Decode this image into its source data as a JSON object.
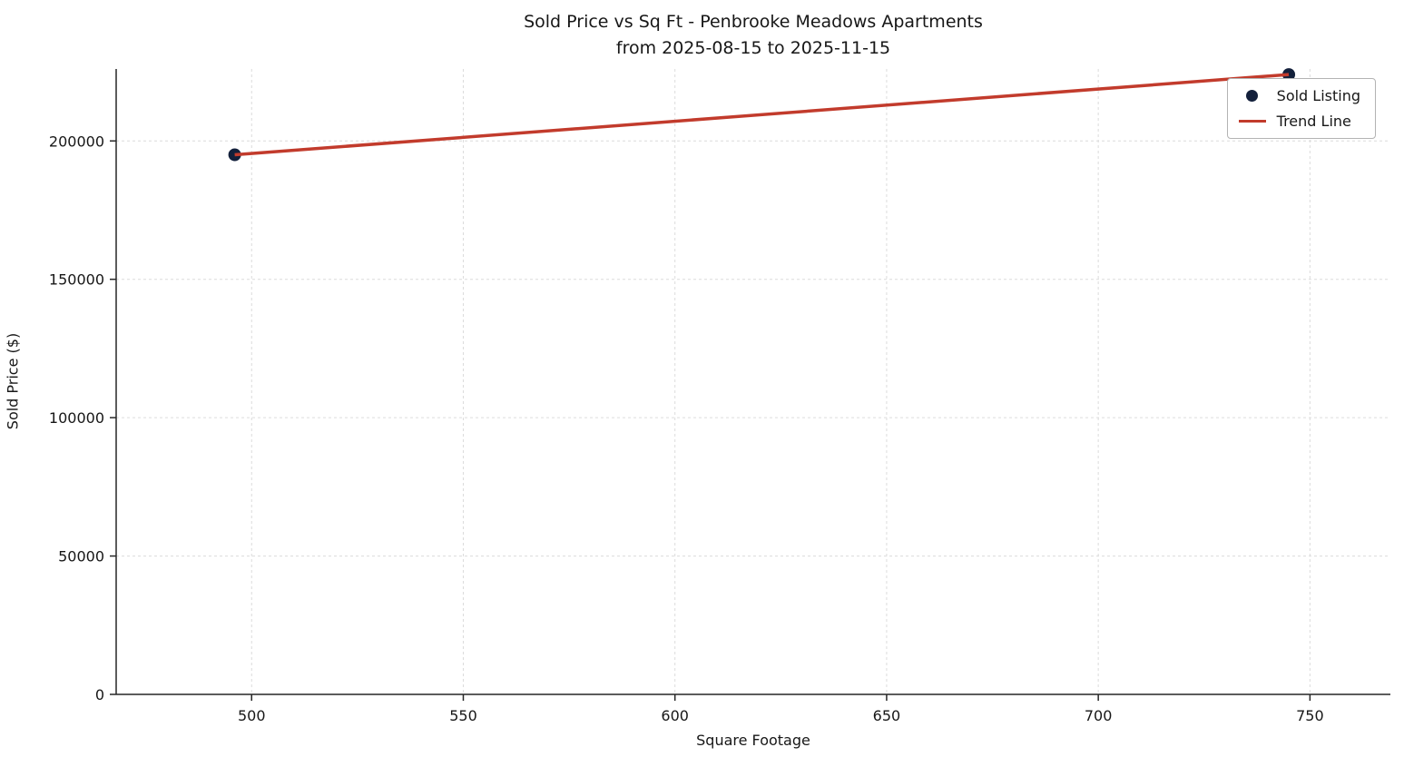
{
  "chart": {
    "title_line1": "Sold Price vs Sq Ft - Penbrooke Meadows Apartments",
    "title_line2": "from 2025-08-15 to 2025-11-15"
  },
  "chart_data": {
    "type": "scatter",
    "title": "Sold Price vs Sq Ft - Penbrooke Meadows Apartments from 2025-08-15 to 2025-11-15",
    "xlabel": "Square Footage",
    "ylabel": "Sold Price ($)",
    "xticks": [
      500,
      550,
      600,
      650,
      700,
      750
    ],
    "yticks": [
      0,
      50000,
      100000,
      150000,
      200000
    ],
    "xlim": [
      468,
      769
    ],
    "ylim": [
      0,
      226000
    ],
    "grid": true,
    "grid_style": "dashed",
    "legend_position": "upper right",
    "series": [
      {
        "name": "Sold Listing",
        "type": "scatter",
        "color": "#13203b",
        "points": [
          [
            496,
            195000
          ],
          [
            745,
            224000
          ]
        ]
      },
      {
        "name": "Trend Line",
        "type": "line",
        "color": "#c23b2c",
        "points": [
          [
            496,
            195000
          ],
          [
            745,
            224000
          ]
        ]
      }
    ]
  },
  "style": {
    "spine_color": "#262626",
    "grid_color": "#dcdcdc",
    "tick_label_color": "#171717"
  }
}
